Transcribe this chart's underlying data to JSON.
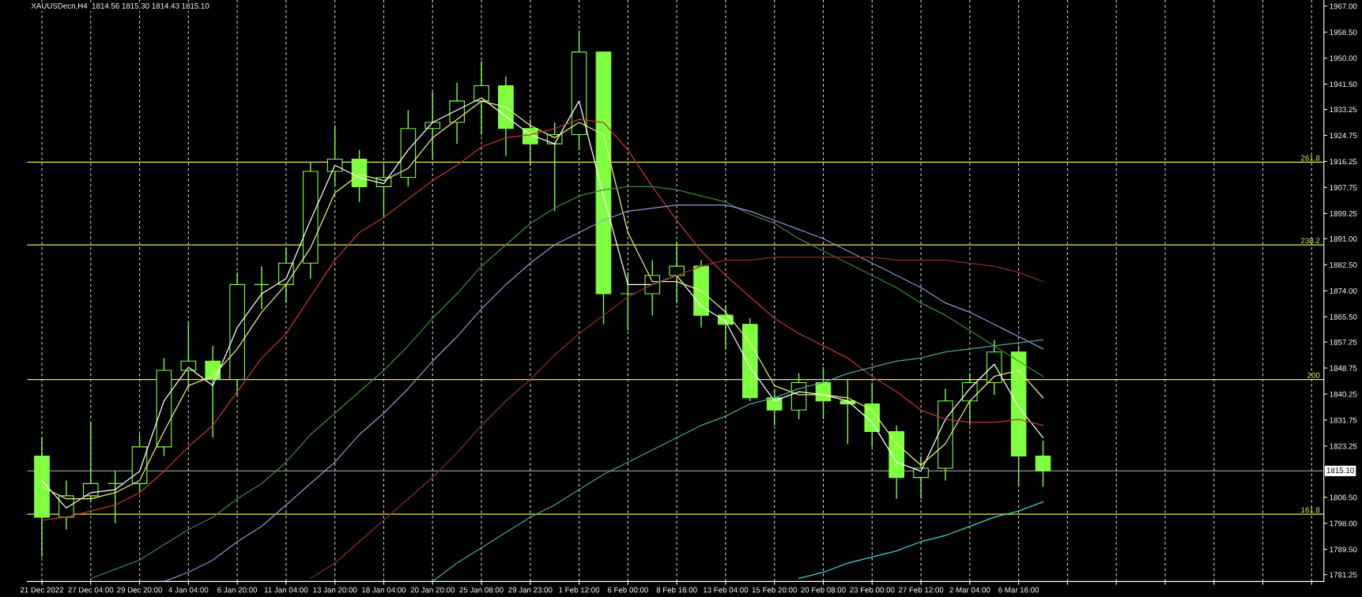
{
  "chart_data": {
    "type": "candlestick",
    "title": "XAUUSDecn,H4  1814.56 1815.30 1814.43 1815.10",
    "categories": [
      "21 Dec 2022",
      null,
      "27 Dec 04:00",
      null,
      "29 Dec 20:00",
      null,
      "4 Jan 04:00",
      null,
      "6 Jan 20:00",
      null,
      "11 Jan 04:00",
      null,
      "13 Jan 20:00",
      null,
      "18 Jan 04:00",
      null,
      "20 Jan 20:00",
      null,
      "25 Jan 08:00",
      null,
      "29 Jan 23:00",
      null,
      "1 Feb 12:00",
      null,
      "6 Feb 00:00",
      null,
      "8 Feb 16:00",
      null,
      "13 Feb 04:00",
      null,
      "15 Feb 20:00",
      null,
      "20 Feb 08:00",
      null,
      "23 Feb 00:00",
      null,
      "27 Feb 12:00",
      null,
      "2 Mar 04:00",
      null,
      "6 Mar 16:00",
      null,
      null,
      null,
      null,
      null,
      null,
      null,
      null,
      null,
      null,
      null,
      null
    ],
    "color": "#80ff40",
    "ohlc": [
      [
        1820,
        1826,
        1787,
        1800
      ],
      [
        1800,
        1812,
        1796,
        1807
      ],
      [
        1807,
        1831,
        1805,
        1811
      ],
      [
        1811,
        1815,
        1798,
        1811
      ],
      [
        1811,
        1827,
        1808,
        1823
      ],
      [
        1823,
        1852,
        1820,
        1848
      ],
      [
        1848,
        1864,
        1842,
        1851
      ],
      [
        1851,
        1856,
        1826,
        1845
      ],
      [
        1845,
        1880,
        1840,
        1876
      ],
      [
        1876,
        1882,
        1868,
        1876
      ],
      [
        1876,
        1888,
        1870,
        1883
      ],
      [
        1883,
        1916,
        1878,
        1913
      ],
      [
        1913,
        1928,
        1908,
        1917
      ],
      [
        1917,
        1920,
        1903,
        1908
      ],
      [
        1908,
        1915,
        1898,
        1911
      ],
      [
        1911,
        1933,
        1908,
        1927
      ],
      [
        1927,
        1939,
        1917,
        1929
      ],
      [
        1929,
        1942,
        1922,
        1936
      ],
      [
        1936,
        1949,
        1925,
        1941
      ],
      [
        1941,
        1944,
        1918,
        1927
      ],
      [
        1927,
        1930,
        1915,
        1922
      ],
      [
        1922,
        1929,
        1900,
        1925
      ],
      [
        1925,
        1959,
        1920,
        1952
      ],
      [
        1952,
        1952,
        1863,
        1873
      ],
      [
        1873,
        1880,
        1861,
        1873
      ],
      [
        1873,
        1884,
        1866,
        1879
      ],
      [
        1879,
        1890,
        1870,
        1882
      ],
      [
        1882,
        1884,
        1862,
        1866
      ],
      [
        1866,
        1869,
        1855,
        1863
      ],
      [
        1863,
        1865,
        1838,
        1839
      ],
      [
        1839,
        1842,
        1830,
        1835
      ],
      [
        1835,
        1847,
        1832,
        1844
      ],
      [
        1844,
        1849,
        1832,
        1838
      ],
      [
        1838,
        1845,
        1824,
        1837
      ],
      [
        1837,
        1844,
        1823,
        1828
      ],
      [
        1828,
        1830,
        1806,
        1813
      ],
      [
        1813,
        1820,
        1806,
        1816
      ],
      [
        1816,
        1842,
        1812,
        1838
      ],
      [
        1838,
        1847,
        1830,
        1844
      ],
      [
        1844,
        1858,
        1840,
        1854
      ],
      [
        1854,
        1856,
        1810,
        1820
      ],
      [
        1820,
        1825,
        1810,
        1815.1
      ],
      null,
      null,
      null,
      null,
      null,
      null,
      null,
      null,
      null,
      null,
      null
    ],
    "series": [
      {
        "type": "line",
        "color": "#ffffff",
        "values": [
          1812,
          1803,
          1808,
          1809,
          1815,
          1838,
          1849,
          1843,
          1862,
          1873,
          1878,
          1897,
          1915,
          1911,
          1909,
          1920,
          1929,
          1933,
          1937,
          1931,
          1925,
          1922,
          1936,
          1905,
          1876,
          1876,
          1879,
          1869,
          1864,
          1849,
          1838,
          1841,
          1840,
          1838,
          1831,
          1818,
          1815,
          1832,
          1842,
          1850,
          1836,
          1826,
          null,
          null,
          null,
          null,
          null,
          null,
          null,
          null,
          null,
          null,
          null
        ]
      },
      {
        "type": "line",
        "color": "#f0f07a",
        "values": [
          1810,
          1806,
          1806,
          1808,
          1812,
          1828,
          1843,
          1846,
          1855,
          1867,
          1876,
          1888,
          1906,
          1912,
          1910,
          1914,
          1924,
          1930,
          1936,
          1934,
          1928,
          1924,
          1929,
          1925,
          1893,
          1877,
          1877,
          1874,
          1867,
          1857,
          1843,
          1840,
          1840,
          1839,
          1835,
          1824,
          1817,
          1824,
          1838,
          1846,
          1848,
          1839,
          null,
          null,
          null,
          null,
          null,
          null,
          null,
          null,
          null,
          null,
          null
        ]
      },
      {
        "type": "line",
        "color": "#c0392b",
        "values": [
          1799,
          1800,
          1802,
          1804,
          1808,
          1815,
          1823,
          1830,
          1841,
          1852,
          1860,
          1872,
          1884,
          1893,
          1898,
          1904,
          1910,
          1915,
          1921,
          1924,
          1925,
          1927,
          1930,
          1929,
          1920,
          1908,
          1897,
          1887,
          1879,
          1872,
          1865,
          1860,
          1856,
          1852,
          1846,
          1841,
          1835,
          1832,
          1831,
          1831,
          1832,
          1830,
          null,
          null,
          null,
          null,
          null,
          null,
          null,
          null,
          null,
          null,
          null
        ]
      },
      {
        "type": "line",
        "color": "#3f8a3f",
        "values": [
          null,
          null,
          1780,
          1783,
          1786,
          1791,
          1796,
          1800,
          1806,
          1811,
          1818,
          1827,
          1834,
          1841,
          1848,
          1856,
          1865,
          1873,
          1882,
          1889,
          1896,
          1901,
          1905,
          1907,
          1908,
          1908,
          1907,
          1905,
          1903,
          1899,
          1896,
          1891,
          1887,
          1883,
          1879,
          1875,
          1870,
          1866,
          1861,
          1856,
          1851,
          1846,
          null,
          null,
          null,
          null,
          null,
          null,
          null,
          null,
          null,
          null,
          null
        ]
      },
      {
        "type": "line",
        "color": "#9b90d8",
        "values": [
          null,
          null,
          null,
          null,
          null,
          1779,
          1782,
          1786,
          1792,
          1797,
          1804,
          1811,
          1818,
          1827,
          1834,
          1842,
          1851,
          1859,
          1868,
          1876,
          1883,
          1889,
          1893,
          1897,
          1900,
          1901,
          1902,
          1902,
          1902,
          1900,
          1897,
          1894,
          1891,
          1887,
          1883,
          1879,
          1875,
          1870,
          1867,
          1863,
          1859,
          1855,
          null,
          null,
          null,
          null,
          null,
          null,
          null,
          null,
          null,
          null,
          null
        ]
      },
      {
        "type": "line",
        "color": "#8e2a2a",
        "values": [
          null,
          null,
          null,
          null,
          null,
          null,
          null,
          null,
          null,
          null,
          null,
          1780,
          1785,
          1792,
          1799,
          1806,
          1813,
          1821,
          1830,
          1838,
          1845,
          1853,
          1860,
          1866,
          1872,
          1876,
          1879,
          1882,
          1884,
          1884,
          1885,
          1885,
          1885,
          1885,
          1885,
          1884,
          1884,
          1884,
          1883,
          1882,
          1880,
          1877,
          null,
          null,
          null,
          null,
          null,
          null,
          null,
          null,
          null,
          null,
          null
        ]
      },
      {
        "type": "line",
        "color": "#4aa59a",
        "values": [
          null,
          null,
          null,
          null,
          null,
          null,
          null,
          null,
          null,
          null,
          null,
          null,
          null,
          null,
          null,
          null,
          1779,
          1785,
          1790,
          1795,
          1800,
          1804,
          1809,
          1814,
          1818,
          1822,
          1826,
          1830,
          1833,
          1837,
          1839,
          1842,
          1844,
          1847,
          1849,
          1851,
          1852,
          1854,
          1855,
          1856,
          1857,
          1858,
          null,
          null,
          null,
          null,
          null,
          null,
          null,
          null,
          null,
          null,
          null
        ]
      },
      {
        "type": "line",
        "color": "#45d4d4",
        "values": [
          null,
          null,
          null,
          null,
          null,
          null,
          null,
          null,
          null,
          null,
          null,
          null,
          null,
          null,
          null,
          null,
          null,
          null,
          null,
          null,
          null,
          null,
          null,
          null,
          null,
          null,
          null,
          null,
          null,
          null,
          null,
          1780,
          1782,
          1785,
          1787,
          1789,
          1792,
          1794,
          1797,
          1800,
          1802,
          1805,
          null,
          null,
          null,
          null,
          null,
          null,
          null,
          null,
          null,
          null,
          null
        ]
      }
    ],
    "ylim": [
      1779,
      1969
    ],
    "yticks": [
      1781.25,
      {
        "value": 1789.5,
        "label": "1789.50"
      },
      {
        "value": 1798,
        "label": "1798.00"
      },
      {
        "value": 1806.5,
        "label": "1806.50"
      },
      1823.25,
      1831.75,
      1840.25,
      1848.75,
      1857.25,
      {
        "value": 1865.5,
        "label": "1865.50"
      },
      {
        "value": 1874,
        "label": "1874.00"
      },
      {
        "value": 1882.5,
        "label": "1882.50"
      },
      {
        "value": 1891,
        "label": "1891.00"
      },
      1899.25,
      1907.75,
      1916.25,
      1924.75,
      1933.25,
      {
        "value": 1941.5,
        "label": "1941.50"
      },
      {
        "value": 1950,
        "label": "1950.00"
      },
      {
        "value": 1958.5,
        "label": "1958.50"
      },
      {
        "value": 1967,
        "label": "1967.00"
      }
    ],
    "ref_lines": [
      {
        "axis": "y",
        "value": 1916,
        "color": "#e8e85a"
      },
      {
        "axis": "y",
        "value": 1889,
        "color": "#e8e85a"
      },
      {
        "axis": "y",
        "value": 1845,
        "color": "#e8e85a"
      },
      {
        "axis": "y",
        "value": 1801,
        "color": "#e8e85a"
      },
      {
        "axis": "y",
        "value": 1815.1,
        "label": "1815.10",
        "color": "#909090"
      }
    ],
    "annotations": [
      {
        "text": "261.8",
        "y": 1916
      },
      {
        "text": "238.2",
        "y": 1889
      },
      {
        "text": "200",
        "y": 1845
      },
      {
        "text": "161.8",
        "y": 1801
      }
    ],
    "grid": "x"
  }
}
